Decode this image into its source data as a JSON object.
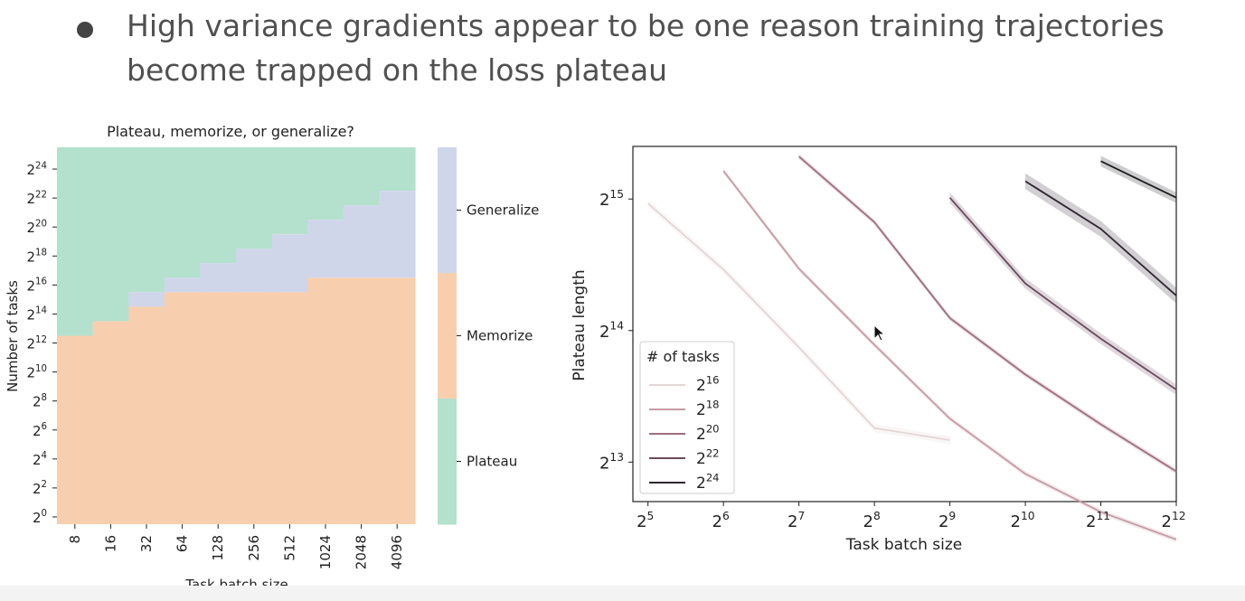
{
  "slide": {
    "bullet": "High variance gradients appear to be one reason training trajectories become trapped on the loss plateau"
  },
  "chart_data": [
    {
      "type": "heatmap",
      "title": "Plateau, memorize, or generalize?",
      "xlabel": "Task batch size",
      "ylabel": "Number of tasks",
      "x_ticks": [
        "8",
        "16",
        "32",
        "64",
        "128",
        "256",
        "512",
        "1024",
        "2048",
        "4096"
      ],
      "y_tick_exponents": [
        "0",
        "2",
        "4",
        "6",
        "8",
        "10",
        "12",
        "14",
        "16",
        "18",
        "20",
        "22",
        "24"
      ],
      "y_tick_base": "2",
      "ylim_log2": [
        -0.5,
        25.5
      ],
      "columns_log2_batch": [
        3,
        4,
        5,
        6,
        7,
        8,
        9,
        10,
        11,
        12
      ],
      "memorize_from_log2_tasks": [
        13,
        14,
        15,
        16,
        16,
        16,
        16,
        17,
        17,
        17
      ],
      "generalize_from_log2_tasks": [
        null,
        null,
        16,
        17,
        18,
        19,
        20,
        21,
        22,
        23
      ],
      "colorbar": [
        {
          "label": "Generalize",
          "color": "#cfd6ea"
        },
        {
          "label": "Memorize",
          "color": "#f8cfae"
        },
        {
          "label": "Plateau",
          "color": "#b4e0ce"
        }
      ]
    },
    {
      "type": "line",
      "xlabel": "Task batch size",
      "ylabel": "Plateau length",
      "x_scale": "log2",
      "y_scale": "log2",
      "xlim_log2": [
        4.8,
        12.0
      ],
      "ylim_log2": [
        12.7,
        15.4
      ],
      "x_tick_exponents": [
        "5",
        "6",
        "7",
        "8",
        "9",
        "10",
        "11",
        "12"
      ],
      "y_tick_exponents": [
        "13",
        "14",
        "15"
      ],
      "tick_base": "2",
      "legend": {
        "title": "# of tasks",
        "position": "lower-left"
      },
      "series": [
        {
          "name": "16",
          "color": "#e4d6d6",
          "band": 0.03,
          "x": [
            5,
            6,
            7,
            8,
            9
          ],
          "y": [
            32000,
            22600,
            15000,
            9800,
            9200
          ]
        },
        {
          "name": "18",
          "color": "#c69ba4",
          "band": 0.02,
          "x": [
            6,
            7,
            8,
            9,
            10,
            11,
            12
          ],
          "y": [
            38000,
            22700,
            15200,
            10300,
            7700,
            6300,
            5450
          ]
        },
        {
          "name": "20",
          "color": "#9f6e80",
          "band": 0.02,
          "x": [
            7,
            8,
            9,
            10,
            11,
            12
          ],
          "y": [
            41000,
            29000,
            17500,
            13000,
            10000,
            7800
          ]
        },
        {
          "name": "22",
          "color": "#6b4a5e",
          "band": 0.04,
          "x": [
            9,
            10,
            11,
            12
          ],
          "y": [
            33000,
            21000,
            15700,
            12000
          ]
        },
        {
          "name": "24",
          "color": "#2f2630",
          "band": 0.06,
          "x": [
            10,
            11,
            12
          ],
          "y": [
            36000,
            28000,
            19700
          ]
        },
        {
          "name": "",
          "color": "#1f1c22",
          "band": 0.04,
          "x": [
            11,
            12
          ],
          "y": [
            40000,
            33000
          ]
        }
      ]
    }
  ]
}
